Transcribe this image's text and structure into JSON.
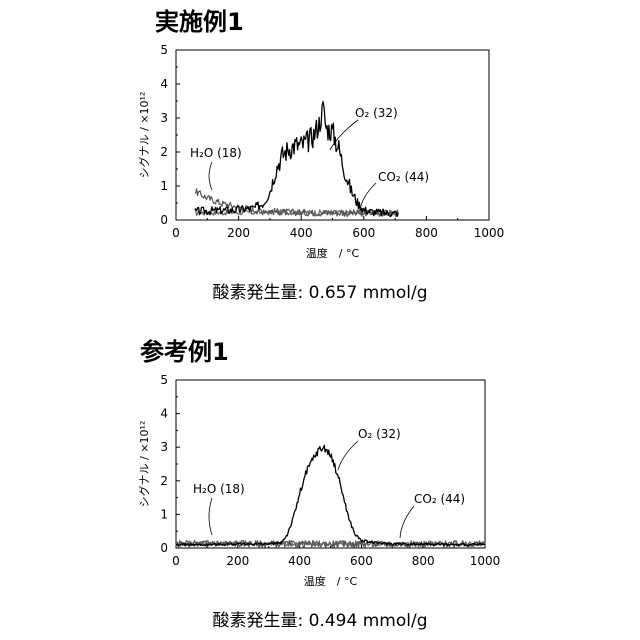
{
  "chart_data": [
    {
      "type": "line",
      "title": "実施例1",
      "xlabel": "温度　/ °C",
      "ylabel": "シグナル / ×10¹²",
      "xlim": [
        0,
        1000
      ],
      "ylim": [
        0,
        5
      ],
      "xticks": [
        "0",
        "200",
        "400",
        "600",
        "800",
        "1000"
      ],
      "yticks": [
        "0",
        "1",
        "2",
        "3",
        "4",
        "5"
      ],
      "grid": false,
      "series": [
        {
          "name": "O₂ (32)",
          "color": "#000000",
          "x": [
            60,
            100,
            150,
            200,
            250,
            280,
            300,
            320,
            340,
            360,
            380,
            400,
            420,
            440,
            460,
            470,
            480,
            500,
            520,
            540,
            560,
            580,
            600,
            620,
            650,
            680,
            710
          ],
          "y": [
            0.25,
            0.27,
            0.28,
            0.3,
            0.35,
            0.5,
            0.85,
            1.5,
            1.9,
            2.1,
            2.2,
            2.2,
            2.3,
            2.5,
            2.9,
            3.3,
            2.7,
            2.6,
            2.1,
            1.4,
            0.85,
            0.5,
            0.3,
            0.25,
            0.22,
            0.2,
            0.2
          ]
        },
        {
          "name": "H₂O (18)",
          "color": "#555555",
          "x": [
            60,
            80,
            100,
            150,
            200,
            250,
            300,
            350,
            400,
            450,
            500,
            550,
            600,
            650,
            710
          ],
          "y": [
            0.85,
            0.75,
            0.65,
            0.48,
            0.38,
            0.3,
            0.26,
            0.23,
            0.22,
            0.21,
            0.21,
            0.2,
            0.2,
            0.2,
            0.2
          ]
        },
        {
          "name": "CO₂ (44)",
          "color": "#666666",
          "x": [
            60,
            150,
            250,
            350,
            450,
            550,
            650,
            710
          ],
          "y": [
            0.2,
            0.22,
            0.22,
            0.23,
            0.22,
            0.22,
            0.21,
            0.2
          ]
        }
      ],
      "annotation": "酸素発生量: 0.657 mmol/g"
    },
    {
      "type": "line",
      "title": "参考例1",
      "xlabel": "温度　/ °C",
      "ylabel": "シグナル / ×10¹²",
      "xlim": [
        0,
        1000
      ],
      "ylim": [
        0,
        5
      ],
      "xticks": [
        "0",
        "200",
        "400",
        "600",
        "800",
        "1000"
      ],
      "yticks": [
        "0",
        "1",
        "2",
        "3",
        "4",
        "5"
      ],
      "grid": false,
      "series": [
        {
          "name": "O₂ (32)",
          "color": "#000000",
          "x": [
            0,
            100,
            200,
            300,
            340,
            360,
            380,
            400,
            420,
            440,
            460,
            480,
            500,
            520,
            540,
            560,
            580,
            600,
            650,
            700,
            800,
            900,
            1000
          ],
          "y": [
            0.1,
            0.1,
            0.12,
            0.12,
            0.15,
            0.4,
            0.9,
            1.6,
            2.2,
            2.6,
            2.9,
            3.0,
            2.75,
            2.3,
            1.6,
            0.85,
            0.4,
            0.22,
            0.15,
            0.12,
            0.12,
            0.1,
            0.1
          ]
        },
        {
          "name": "H₂O (18)",
          "color": "#555555",
          "x": [
            0,
            100,
            200,
            300,
            400,
            500,
            600,
            700,
            800,
            900,
            1000
          ],
          "y": [
            0.12,
            0.15,
            0.14,
            0.12,
            0.12,
            0.12,
            0.12,
            0.12,
            0.12,
            0.12,
            0.12
          ]
        },
        {
          "name": "CO₂ (44)",
          "color": "#666666",
          "x": [
            0,
            100,
            200,
            300,
            400,
            500,
            600,
            700,
            800,
            900,
            1000
          ],
          "y": [
            0.12,
            0.13,
            0.13,
            0.12,
            0.13,
            0.12,
            0.13,
            0.12,
            0.13,
            0.12,
            0.12
          ]
        }
      ],
      "annotation": "酸素発生量: 0.494 mmol/g"
    }
  ]
}
